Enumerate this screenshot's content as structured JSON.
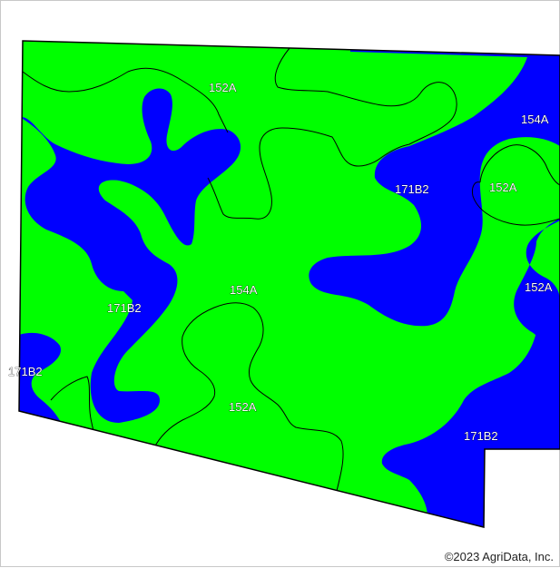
{
  "map": {
    "colors": {
      "map_unit_green": "#00ff00",
      "map_unit_blue": "#0000ff",
      "boundary": "#000000"
    },
    "units": [
      {
        "symbol": "152A"
      },
      {
        "symbol": "154A"
      },
      {
        "symbol": "152A"
      },
      {
        "symbol": "171B2"
      },
      {
        "symbol": "154A"
      },
      {
        "symbol": "171B2"
      },
      {
        "symbol": "152A"
      },
      {
        "symbol": "171B2"
      },
      {
        "symbol": "152A"
      },
      {
        "symbol": "171B2"
      }
    ]
  },
  "footer": {
    "copyright": "©2023 AgriData, Inc."
  }
}
